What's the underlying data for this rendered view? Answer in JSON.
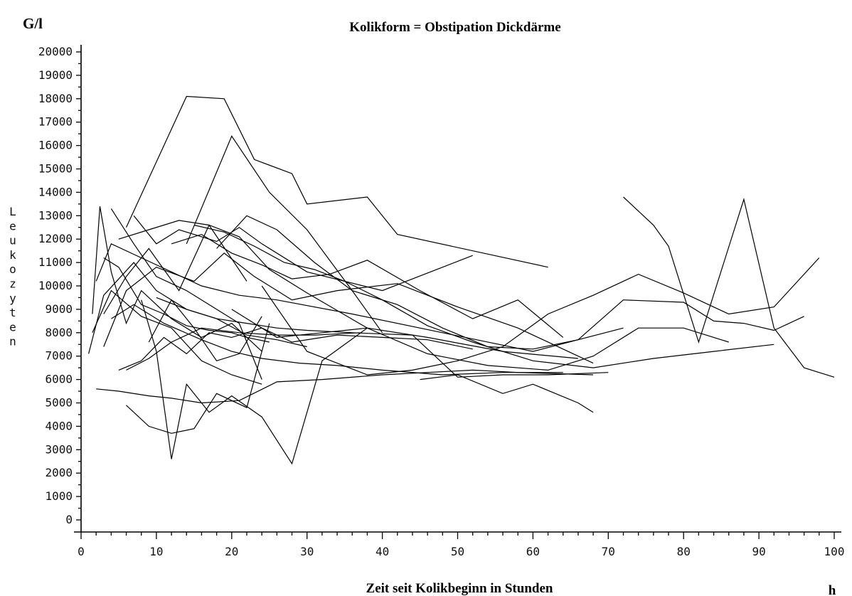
{
  "chart_data": {
    "type": "line",
    "title": "Kolikform = Obstipation Dickdärme",
    "ylabel": "Leukozyten",
    "xlabel": "Zeit seit Kolikbeginn in Stunden",
    "y_unit": "G/l",
    "x_unit": "h",
    "xlim": [
      0,
      100
    ],
    "ylim": [
      0,
      20000
    ],
    "x_ticks": [
      "0",
      "10",
      "20",
      "30",
      "40",
      "50",
      "60",
      "70",
      "80",
      "90",
      "100"
    ],
    "y_ticks": [
      "0",
      "1000",
      "2000",
      "3000",
      "4000",
      "5000",
      "6000",
      "7000",
      "8000",
      "9000",
      "10000",
      "11000",
      "12000",
      "13000",
      "14000",
      "15000",
      "16000",
      "17000",
      "18000",
      "19000",
      "20000"
    ],
    "legend": "none",
    "grid": false,
    "series": [
      {
        "x": [
          6,
          14,
          19,
          23,
          28,
          30,
          38,
          42,
          62
        ],
        "y": [
          12500,
          18100,
          18000,
          15400,
          14800,
          13500,
          13800,
          12200,
          10800
        ]
      },
      {
        "x": [
          14,
          20,
          25,
          30,
          36,
          40
        ],
        "y": [
          11800,
          16400,
          14000,
          12400,
          9800,
          8000
        ]
      },
      {
        "x": [
          3,
          5,
          8,
          11,
          14,
          17,
          20,
          22,
          25
        ],
        "y": [
          11200,
          10800,
          9200,
          8800,
          8300,
          8100,
          8000,
          7800,
          7600
        ]
      },
      {
        "x": [
          4,
          7,
          10,
          14,
          18,
          21,
          24
        ],
        "y": [
          13300,
          11800,
          10400,
          9800,
          9000,
          8400,
          6000
        ]
      },
      {
        "x": [
          7,
          10,
          13,
          18,
          21,
          24,
          30,
          40,
          52
        ],
        "y": [
          13000,
          11800,
          12400,
          11900,
          12500,
          11800,
          10600,
          9800,
          11300
        ]
      },
      {
        "x": [
          2,
          4,
          8,
          12,
          16,
          21,
          26,
          36,
          48,
          60,
          72
        ],
        "y": [
          10200,
          11800,
          11200,
          10600,
          10000,
          9600,
          9400,
          8800,
          8000,
          7200,
          8200
        ]
      },
      {
        "x": [
          1.5,
          2.5,
          4,
          6,
          8,
          12,
          16,
          20,
          24
        ],
        "y": [
          8800,
          13400,
          10600,
          8400,
          9800,
          8600,
          7800,
          8400,
          7200
        ]
      },
      {
        "x": [
          5,
          9,
          13,
          17,
          21,
          25,
          30,
          38,
          46,
          56,
          66
        ],
        "y": [
          12000,
          12400,
          12800,
          12600,
          12100,
          10700,
          9700,
          8200,
          7800,
          7200,
          6900
        ]
      },
      {
        "x": [
          3,
          6,
          10,
          15,
          19,
          23,
          28,
          34,
          42,
          50,
          58,
          68
        ],
        "y": [
          7400,
          9800,
          10800,
          10200,
          11400,
          10400,
          9400,
          9800,
          10100,
          9100,
          8200,
          6700
        ]
      },
      {
        "x": [
          1,
          3,
          7,
          10,
          14,
          18,
          22,
          26,
          30
        ],
        "y": [
          7100,
          9600,
          11000,
          9800,
          9000,
          8600,
          7900,
          7700,
          7400
        ]
      },
      {
        "x": [
          2,
          5,
          9,
          12,
          16,
          21,
          26,
          32,
          40,
          46,
          52,
          58,
          68
        ],
        "y": [
          5600,
          5500,
          5300,
          5200,
          5000,
          5100,
          5900,
          6000,
          6200,
          6300,
          6400,
          6300,
          6200
        ]
      },
      {
        "x": [
          5,
          8,
          11,
          14,
          17,
          20,
          24,
          28,
          34,
          40,
          46,
          52
        ],
        "y": [
          6400,
          6800,
          7800,
          7100,
          8000,
          7800,
          8200,
          7600,
          7900,
          7800,
          7700,
          7300
        ]
      },
      {
        "x": [
          6,
          9,
          12,
          15,
          18,
          22,
          25
        ],
        "y": [
          4900,
          4000,
          3700,
          3900,
          5400,
          4800,
          8400
        ]
      },
      {
        "x": [
          8,
          10,
          12,
          14,
          17,
          20,
          24,
          28,
          32,
          38
        ],
        "y": [
          9400,
          7200,
          2600,
          5800,
          4600,
          5300,
          4400,
          2400,
          6800,
          8200
        ]
      },
      {
        "x": [
          4,
          7,
          11,
          16,
          20,
          24,
          29,
          34,
          40,
          48,
          56,
          64
        ],
        "y": [
          8600,
          9200,
          8400,
          7700,
          7200,
          6900,
          6700,
          6600,
          6400,
          6200,
          6300,
          6300
        ]
      },
      {
        "x": [
          10,
          14,
          18,
          22,
          26,
          30,
          36,
          44,
          50,
          56,
          62,
          70
        ],
        "y": [
          9500,
          9000,
          8600,
          8400,
          8200,
          8100,
          8000,
          7900,
          6100,
          6200,
          6200,
          6300
        ]
      },
      {
        "x": [
          12,
          16,
          20,
          24,
          28,
          33,
          38,
          45,
          52,
          58,
          64
        ],
        "y": [
          11800,
          12200,
          11400,
          10900,
          10300,
          10500,
          11100,
          9800,
          8600,
          9400,
          7800
        ]
      },
      {
        "x": [
          18,
          22,
          26,
          31,
          36,
          42,
          48,
          54,
          60,
          66,
          72,
          80,
          84,
          88,
          92,
          96
        ],
        "y": [
          11600,
          13000,
          12400,
          11000,
          9800,
          9200,
          8200,
          7400,
          7300,
          7700,
          9400,
          9300,
          8500,
          8400,
          8100,
          8700
        ]
      },
      {
        "x": [
          24,
          30,
          38,
          44,
          50,
          56,
          62,
          68,
          74,
          80,
          86,
          92,
          98
        ],
        "y": [
          10000,
          7200,
          6200,
          6400,
          6800,
          7400,
          8800,
          9600,
          10500,
          9700,
          8800,
          9100,
          11200
        ]
      },
      {
        "x": [
          45,
          50,
          56,
          60,
          66,
          68
        ],
        "y": [
          6000,
          6200,
          5400,
          5800,
          5000,
          4600
        ]
      },
      {
        "x": [
          72,
          76,
          78,
          82,
          88,
          92,
          96,
          100
        ],
        "y": [
          13800,
          12600,
          11700,
          7600,
          13700,
          8200,
          6500,
          6100
        ]
      },
      {
        "x": [
          20,
          26,
          32,
          38,
          46,
          54,
          62,
          68,
          74,
          80,
          86
        ],
        "y": [
          9000,
          7800,
          8000,
          8200,
          7100,
          6600,
          6400,
          7000,
          8200,
          8200,
          7600
        ]
      },
      {
        "x": [
          6,
          9,
          12,
          16,
          21,
          26,
          31,
          37
        ],
        "y": [
          6400,
          6900,
          7600,
          8200,
          8000,
          7900,
          7900,
          8000
        ]
      },
      {
        "x": [
          15,
          19,
          23,
          27,
          31,
          35,
          40,
          46,
          52,
          60,
          68,
          76,
          84,
          92
        ],
        "y": [
          12600,
          12300,
          11700,
          11000,
          10700,
          10200,
          9400,
          8300,
          7600,
          6800,
          6500,
          6900,
          7200,
          7500
        ]
      },
      {
        "x": [
          9,
          12,
          15,
          18,
          21,
          24
        ],
        "y": [
          7600,
          9400,
          8200,
          6800,
          7100,
          8700
        ]
      },
      {
        "x": [
          1.5,
          4,
          8,
          12,
          16,
          20,
          24
        ],
        "y": [
          8000,
          9800,
          8700,
          8200,
          6800,
          6200,
          5800
        ]
      },
      {
        "x": [
          3,
          6,
          9,
          13,
          17,
          22
        ],
        "y": [
          8800,
          10400,
          11600,
          9800,
          12600,
          10200
        ]
      }
    ]
  }
}
